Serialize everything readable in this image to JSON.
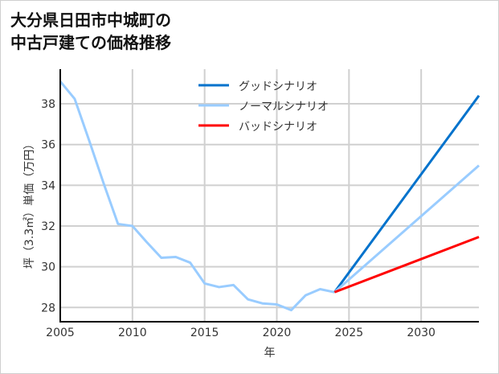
{
  "chart_data": {
    "type": "line",
    "title_lines": [
      "大分県日田市中城町の",
      "中古戸建ての価格推移"
    ],
    "xlabel": "年",
    "ylabel": "坪（3.3㎡）単価（万円）",
    "xlim": [
      2005,
      2034
    ],
    "ylim": [
      27.3,
      39.7
    ],
    "xticks": [
      2005,
      2010,
      2015,
      2020,
      2025,
      2030
    ],
    "yticks": [
      28,
      30,
      32,
      34,
      36,
      38
    ],
    "grid": true,
    "legend_position": "top-center",
    "history": {
      "name": "ノーマルシナリオ",
      "x": [
        2005,
        2006,
        2007,
        2008,
        2009,
        2010,
        2011,
        2012,
        2013,
        2014,
        2015,
        2016,
        2017,
        2018,
        2019,
        2020,
        2021,
        2022,
        2023,
        2024
      ],
      "y": [
        39.1,
        38.24,
        36.2,
        34.1,
        32.1,
        32.0,
        31.2,
        30.44,
        30.48,
        30.2,
        29.18,
        29.0,
        29.1,
        28.4,
        28.2,
        28.15,
        27.87,
        28.6,
        28.9,
        28.75
      ]
    },
    "series": [
      {
        "name": "グッドシナリオ",
        "color": "#0072cc",
        "x": [
          2024,
          2034
        ],
        "y": [
          28.75,
          38.4
        ]
      },
      {
        "name": "ノーマルシナリオ",
        "color": "#99ccff",
        "x": [
          2024,
          2034
        ],
        "y": [
          28.75,
          34.97
        ]
      },
      {
        "name": "バッドシナリオ",
        "color": "#ff0000",
        "x": [
          2024,
          2034
        ],
        "y": [
          28.75,
          31.46
        ]
      }
    ]
  }
}
